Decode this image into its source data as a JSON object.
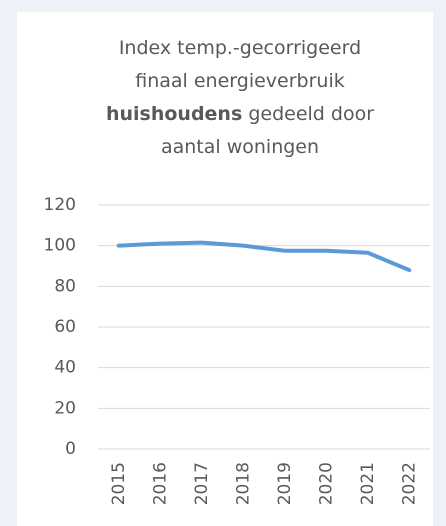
{
  "chart_data": {
    "type": "line",
    "title_lines": [
      [
        {
          "text": "Index temp.-gecorrigeerd",
          "bold": false
        }
      ],
      [
        {
          "text": "finaal energieverbruik",
          "bold": false
        }
      ],
      [
        {
          "text": "huishoudens",
          "bold": true
        },
        {
          "text": " gedeeld door",
          "bold": false
        }
      ],
      [
        {
          "text": "aantal woningen",
          "bold": false
        }
      ]
    ],
    "categories": [
      "2015",
      "2016",
      "2017",
      "2018",
      "2019",
      "2020",
      "2021",
      "2022"
    ],
    "values": [
      100,
      101,
      101.5,
      100,
      97.5,
      97.5,
      96.5,
      88
    ],
    "color": "#5b9bd5",
    "ylim": [
      0,
      120
    ],
    "yticks": [
      0,
      20,
      40,
      60,
      80,
      100,
      120
    ],
    "grid": true
  }
}
